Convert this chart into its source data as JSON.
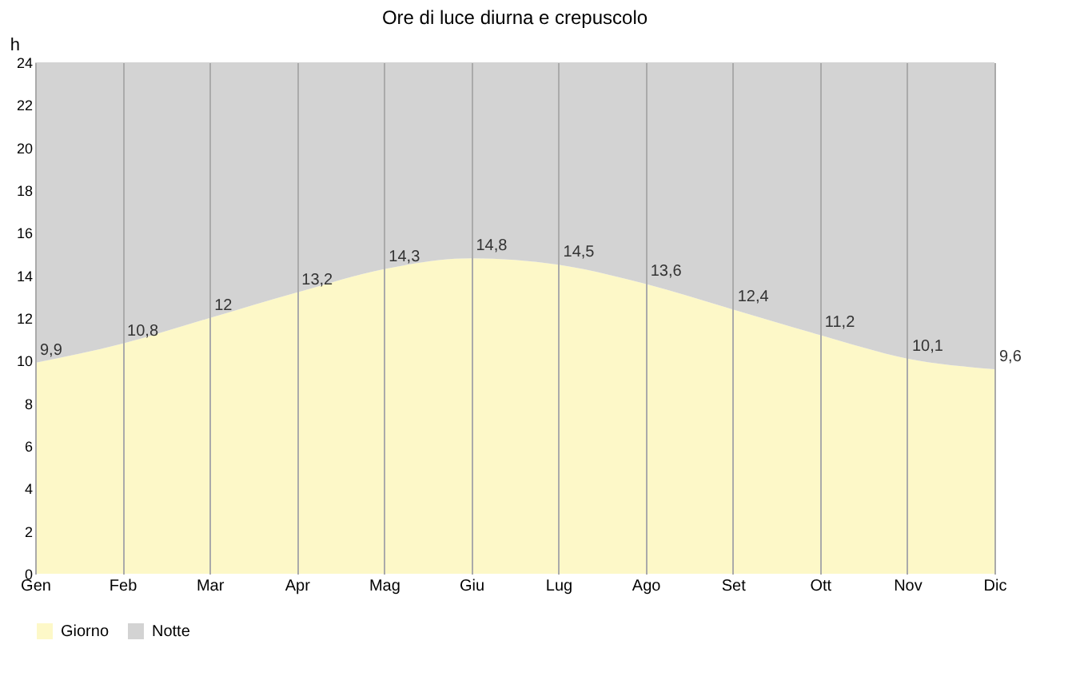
{
  "chart_data": {
    "type": "area",
    "title": "Ore di luce diurna e crepuscolo",
    "ylabel": "h",
    "categories": [
      "Gen",
      "Feb",
      "Mar",
      "Apr",
      "Mag",
      "Giu",
      "Lug",
      "Ago",
      "Set",
      "Ott",
      "Nov",
      "Dic"
    ],
    "stacked": true,
    "series": [
      {
        "name": "Giorno",
        "color": "#fdf8c8",
        "values": [
          9.9,
          10.8,
          12,
          13.2,
          14.3,
          14.8,
          14.5,
          13.6,
          12.4,
          11.2,
          10.1,
          9.6
        ],
        "value_labels": [
          "9,9",
          "10,8",
          "12",
          "13,2",
          "14,3",
          "14,8",
          "14,5",
          "13,6",
          "12,4",
          "11,2",
          "10,1",
          "9,6"
        ]
      },
      {
        "name": "Notte",
        "color": "#d3d3d3",
        "values": [
          14.1,
          13.2,
          12,
          10.8,
          9.7,
          9.2,
          9.5,
          10.4,
          11.6,
          12.8,
          13.9,
          14.4
        ]
      }
    ],
    "ylim": [
      0,
      24
    ],
    "yticks": [
      0,
      2,
      4,
      6,
      8,
      10,
      12,
      14,
      16,
      18,
      20,
      22,
      24
    ],
    "grid": "x",
    "legend": "bottom"
  }
}
